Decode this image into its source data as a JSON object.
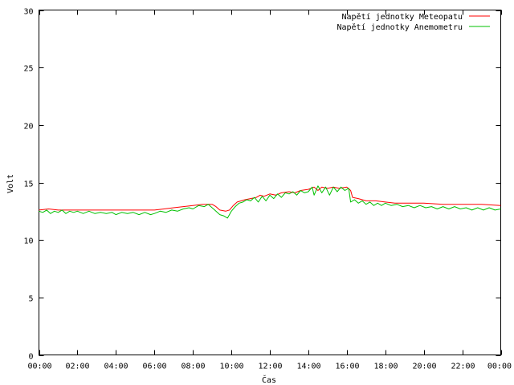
{
  "chart_data": {
    "type": "line",
    "title": "",
    "xlabel": "Čas",
    "ylabel": "Volt",
    "xlim": [
      0,
      24
    ],
    "ylim": [
      0,
      30
    ],
    "grid": false,
    "legend_position": "top-right",
    "x_ticks": [
      {
        "value": 0,
        "label": "00:00"
      },
      {
        "value": 2,
        "label": "02:00"
      },
      {
        "value": 4,
        "label": "04:00"
      },
      {
        "value": 6,
        "label": "06:00"
      },
      {
        "value": 8,
        "label": "08:00"
      },
      {
        "value": 10,
        "label": "10:00"
      },
      {
        "value": 12,
        "label": "12:00"
      },
      {
        "value": 14,
        "label": "14:00"
      },
      {
        "value": 16,
        "label": "16:00"
      },
      {
        "value": 18,
        "label": "18:00"
      },
      {
        "value": 20,
        "label": "20:00"
      },
      {
        "value": 22,
        "label": "22:00"
      },
      {
        "value": 24,
        "label": "00:00"
      }
    ],
    "y_ticks": [
      {
        "value": 0,
        "label": "0"
      },
      {
        "value": 5,
        "label": "5"
      },
      {
        "value": 10,
        "label": "10"
      },
      {
        "value": 15,
        "label": "15"
      },
      {
        "value": 20,
        "label": "20"
      },
      {
        "value": 25,
        "label": "25"
      },
      {
        "value": 30,
        "label": "30"
      }
    ],
    "series": [
      {
        "name": "Napětí jednotky Meteopatu",
        "color": "#ff0000",
        "points": [
          [
            0,
            12.6
          ],
          [
            0.5,
            12.7
          ],
          [
            1,
            12.6
          ],
          [
            1.5,
            12.6
          ],
          [
            2,
            12.6
          ],
          [
            3,
            12.6
          ],
          [
            4,
            12.6
          ],
          [
            5,
            12.6
          ],
          [
            6,
            12.6
          ],
          [
            6.5,
            12.7
          ],
          [
            7,
            12.8
          ],
          [
            7.5,
            12.9
          ],
          [
            8,
            13.0
          ],
          [
            8.5,
            13.1
          ],
          [
            9,
            13.1
          ],
          [
            9.2,
            12.9
          ],
          [
            9.4,
            12.6
          ],
          [
            9.7,
            12.5
          ],
          [
            9.9,
            12.6
          ],
          [
            10.1,
            13.0
          ],
          [
            10.3,
            13.3
          ],
          [
            10.7,
            13.5
          ],
          [
            11,
            13.6
          ],
          [
            11.3,
            13.7
          ],
          [
            11.5,
            13.9
          ],
          [
            11.7,
            13.8
          ],
          [
            12,
            14.0
          ],
          [
            12.3,
            13.9
          ],
          [
            12.6,
            14.1
          ],
          [
            13,
            14.2
          ],
          [
            13.3,
            14.1
          ],
          [
            13.6,
            14.3
          ],
          [
            14,
            14.4
          ],
          [
            14.3,
            14.6
          ],
          [
            14.5,
            14.3
          ],
          [
            14.7,
            14.6
          ],
          [
            15,
            14.5
          ],
          [
            15.3,
            14.6
          ],
          [
            15.6,
            14.5
          ],
          [
            16,
            14.6
          ],
          [
            16.2,
            14.3
          ],
          [
            16.3,
            13.7
          ],
          [
            16.6,
            13.6
          ],
          [
            17,
            13.4
          ],
          [
            17.5,
            13.4
          ],
          [
            18,
            13.3
          ],
          [
            18.5,
            13.2
          ],
          [
            19,
            13.2
          ],
          [
            20,
            13.2
          ],
          [
            21,
            13.1
          ],
          [
            22,
            13.1
          ],
          [
            23,
            13.1
          ],
          [
            24,
            13.0
          ]
        ]
      },
      {
        "name": "Napětí jednotky Anemometru",
        "color": "#00c000",
        "points": [
          [
            0,
            12.5
          ],
          [
            0.2,
            12.4
          ],
          [
            0.4,
            12.6
          ],
          [
            0.6,
            12.3
          ],
          [
            0.8,
            12.5
          ],
          [
            1,
            12.4
          ],
          [
            1.2,
            12.6
          ],
          [
            1.4,
            12.3
          ],
          [
            1.6,
            12.5
          ],
          [
            1.8,
            12.4
          ],
          [
            2,
            12.5
          ],
          [
            2.3,
            12.3
          ],
          [
            2.6,
            12.5
          ],
          [
            2.9,
            12.3
          ],
          [
            3.2,
            12.4
          ],
          [
            3.5,
            12.3
          ],
          [
            3.8,
            12.4
          ],
          [
            4,
            12.2
          ],
          [
            4.3,
            12.4
          ],
          [
            4.6,
            12.3
          ],
          [
            4.9,
            12.4
          ],
          [
            5.2,
            12.2
          ],
          [
            5.5,
            12.4
          ],
          [
            5.8,
            12.2
          ],
          [
            6,
            12.3
          ],
          [
            6.3,
            12.5
          ],
          [
            6.6,
            12.4
          ],
          [
            6.9,
            12.6
          ],
          [
            7.2,
            12.5
          ],
          [
            7.5,
            12.7
          ],
          [
            7.8,
            12.8
          ],
          [
            8,
            12.7
          ],
          [
            8.3,
            13.0
          ],
          [
            8.6,
            12.9
          ],
          [
            8.8,
            13.1
          ],
          [
            9,
            12.8
          ],
          [
            9.2,
            12.5
          ],
          [
            9.4,
            12.2
          ],
          [
            9.6,
            12.1
          ],
          [
            9.8,
            11.9
          ],
          [
            10,
            12.5
          ],
          [
            10.2,
            12.9
          ],
          [
            10.4,
            13.2
          ],
          [
            10.6,
            13.3
          ],
          [
            10.8,
            13.5
          ],
          [
            11,
            13.4
          ],
          [
            11.2,
            13.7
          ],
          [
            11.4,
            13.3
          ],
          [
            11.6,
            13.8
          ],
          [
            11.8,
            13.4
          ],
          [
            12,
            13.9
          ],
          [
            12.2,
            13.6
          ],
          [
            12.4,
            14.0
          ],
          [
            12.6,
            13.7
          ],
          [
            12.8,
            14.1
          ],
          [
            13,
            14.0
          ],
          [
            13.2,
            14.2
          ],
          [
            13.4,
            13.9
          ],
          [
            13.6,
            14.3
          ],
          [
            13.8,
            14.1
          ],
          [
            14,
            14.2
          ],
          [
            14.2,
            14.6
          ],
          [
            14.3,
            13.9
          ],
          [
            14.5,
            14.7
          ],
          [
            14.7,
            14.1
          ],
          [
            14.9,
            14.6
          ],
          [
            15.1,
            13.9
          ],
          [
            15.3,
            14.6
          ],
          [
            15.5,
            14.2
          ],
          [
            15.7,
            14.6
          ],
          [
            15.9,
            14.3
          ],
          [
            16.1,
            14.5
          ],
          [
            16.2,
            13.3
          ],
          [
            16.4,
            13.5
          ],
          [
            16.6,
            13.2
          ],
          [
            16.8,
            13.4
          ],
          [
            17,
            13.1
          ],
          [
            17.2,
            13.3
          ],
          [
            17.4,
            13.0
          ],
          [
            17.6,
            13.2
          ],
          [
            17.8,
            13.0
          ],
          [
            18,
            13.2
          ],
          [
            18.3,
            13.0
          ],
          [
            18.6,
            13.1
          ],
          [
            18.9,
            12.9
          ],
          [
            19.2,
            13.0
          ],
          [
            19.5,
            12.8
          ],
          [
            19.8,
            13.0
          ],
          [
            20.1,
            12.8
          ],
          [
            20.4,
            12.9
          ],
          [
            20.7,
            12.7
          ],
          [
            21,
            12.9
          ],
          [
            21.3,
            12.7
          ],
          [
            21.6,
            12.9
          ],
          [
            21.9,
            12.7
          ],
          [
            22.2,
            12.8
          ],
          [
            22.5,
            12.6
          ],
          [
            22.8,
            12.8
          ],
          [
            23.1,
            12.6
          ],
          [
            23.4,
            12.8
          ],
          [
            23.7,
            12.6
          ],
          [
            24,
            12.7
          ]
        ]
      }
    ]
  }
}
